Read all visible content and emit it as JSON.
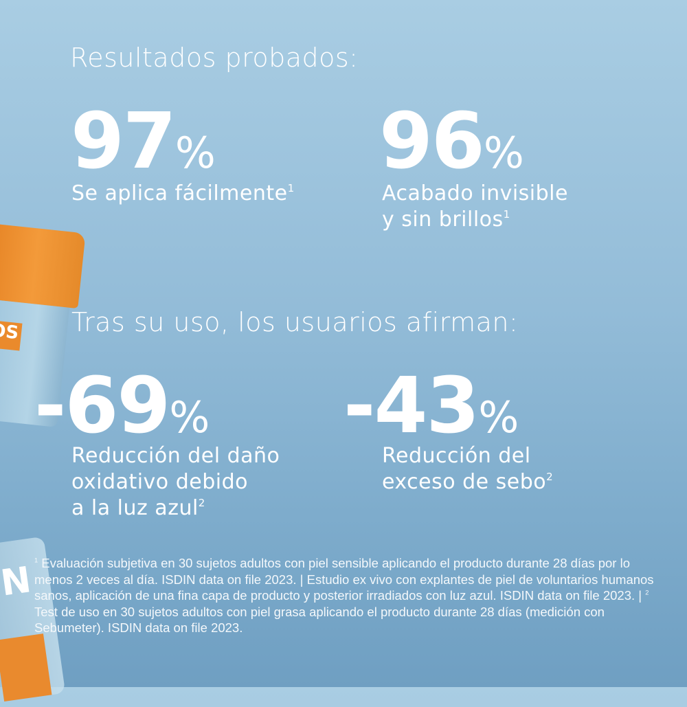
{
  "heading1": "Resultados probados:",
  "stats1": [
    {
      "value": "97",
      "unit": "%",
      "label_lines": [
        "Se aplica fácilmente"
      ],
      "footnote": "1"
    },
    {
      "value": "96",
      "unit": "%",
      "label_lines": [
        "Acabado invisible",
        "y sin brillos"
      ],
      "footnote": "1"
    }
  ],
  "heading2": "Tras su uso, los usuarios afirman:",
  "stats2": [
    {
      "value": "-69",
      "unit": "%",
      "label_lines": [
        "Reducción del daño",
        "oxidativo debido",
        "a la luz azul"
      ],
      "footnote": "2"
    },
    {
      "value": "-43",
      "unit": "%",
      "label_lines": [
        "Reducción del",
        "exceso de sebo"
      ],
      "footnote": "2"
    }
  ],
  "product": {
    "jar_label": "OS",
    "brand_partial": "IN"
  },
  "footnotes": {
    "marker1": "1",
    "text1": " Evaluación subjetiva en 30 sujetos adultos con piel sensible aplicando el producto durante 28 días por lo menos 2 veces al día. ISDIN data on file 2023. | Estudio ex vivo con explantes de piel de voluntarios humanos sanos, aplicación de una fina capa de producto y posterior irradiados con luz azul. ISDIN data on file 2023. | ",
    "marker2": "2",
    "text2": " Test de uso en 30 sujetos adultos con piel grasa aplicando el producto durante 28 días (medición con Sebumeter). ISDIN data on file 2023."
  },
  "colors": {
    "background": "#93bcd8",
    "cap": "#f39a3a",
    "text": "#ffffff"
  }
}
